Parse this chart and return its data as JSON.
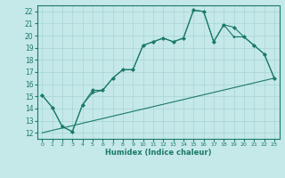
{
  "xlabel": "Humidex (Indice chaleur)",
  "xlim": [
    -0.5,
    23.5
  ],
  "ylim": [
    11.5,
    22.5
  ],
  "xticks": [
    0,
    1,
    2,
    3,
    4,
    5,
    6,
    7,
    8,
    9,
    10,
    11,
    12,
    13,
    14,
    15,
    16,
    17,
    18,
    19,
    20,
    21,
    22,
    23
  ],
  "yticks": [
    12,
    13,
    14,
    15,
    16,
    17,
    18,
    19,
    20,
    21,
    22
  ],
  "bg_color": "#c5e8e8",
  "grid_color": "#a8d4d4",
  "line_color": "#1a7a6a",
  "line1_x": [
    0,
    1,
    2,
    3,
    4,
    5,
    6,
    7,
    8,
    9,
    10,
    11,
    12,
    13,
    14,
    15,
    16,
    17,
    18,
    19,
    20,
    21,
    22,
    23
  ],
  "line1_y": [
    15.1,
    14.1,
    12.5,
    12.1,
    14.3,
    15.5,
    15.5,
    16.5,
    17.2,
    17.2,
    19.2,
    19.5,
    19.8,
    19.5,
    19.8,
    22.1,
    22.0,
    19.5,
    20.9,
    20.7,
    19.9,
    19.2,
    18.5,
    16.5
  ],
  "line2_x": [
    0,
    1,
    2,
    3,
    4,
    5,
    6,
    7,
    8,
    9,
    10,
    11,
    12,
    13,
    14,
    15,
    16,
    17,
    18,
    19,
    20,
    21,
    22,
    23
  ],
  "line2_y": [
    15.1,
    14.1,
    12.5,
    12.1,
    14.3,
    15.3,
    15.5,
    16.5,
    17.2,
    17.2,
    19.2,
    19.5,
    19.8,
    19.5,
    19.8,
    22.1,
    22.0,
    19.5,
    20.9,
    19.9,
    19.9,
    19.2,
    18.5,
    16.5
  ],
  "line3_x": [
    0,
    23
  ],
  "line3_y": [
    12.0,
    16.5
  ],
  "line1_marker": "D",
  "line2_marker": ">",
  "marker_size": 2.0,
  "linewidth": 0.8
}
